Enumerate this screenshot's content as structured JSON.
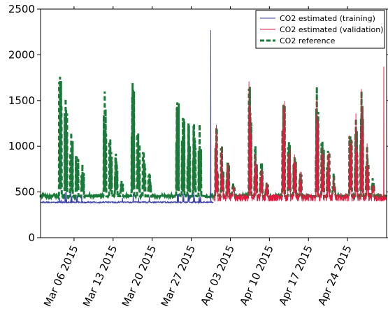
{
  "chart_data": {
    "type": "line",
    "title": "",
    "xlabel": "",
    "ylabel": "",
    "x_axis": {
      "type": "date",
      "range": [
        "2015-02-28",
        "2015-05-01"
      ],
      "tick_dates": [
        "2015-03-06",
        "2015-03-13",
        "2015-03-20",
        "2015-03-27",
        "2015-04-03",
        "2015-04-10",
        "2015-04-17",
        "2015-04-24"
      ],
      "tick_labels": [
        "Mar 06 2015",
        "Mar 13 2015",
        "Mar 20 2015",
        "Mar 27 2015",
        "Apr 03 2015",
        "Apr 10 2015",
        "Apr 17 2015",
        "Apr 24 2015"
      ]
    },
    "y_axis": {
      "range": [
        0,
        2500
      ],
      "ticks": [
        0,
        500,
        1000,
        1500,
        2000,
        2500
      ],
      "tick_labels": [
        "0",
        "500",
        "1000",
        "1500",
        "2000",
        "2500"
      ]
    },
    "grid": false,
    "legend": {
      "position": "top-right",
      "entries": [
        {
          "label": "CO2 estimated (training)",
          "color": "#3a3fa8",
          "style": "solid"
        },
        {
          "label": "CO2 estimated (validation)",
          "color": "#e5173f",
          "style": "solid"
        },
        {
          "label": "CO2 reference",
          "color": "#1a7a3a",
          "style": "dashed"
        }
      ]
    },
    "daily_peaks": {
      "description_dates": "one entry per day starting at x_axis.range[0]",
      "reference": [
        460,
        460,
        470,
        1760,
        1520,
        1150,
        900,
        800,
        470,
        460,
        470,
        1600,
        1080,
        920,
        620,
        470,
        1690,
        1140,
        940,
        700,
        480,
        470,
        470,
        470,
        1480,
        1310,
        1250,
        1250,
        1240,
        470,
        460,
        1200,
        1000,
        820,
        600,
        470,
        470,
        1650,
        1000,
        820,
        600,
        470,
        470,
        1450,
        1050,
        880,
        700,
        470,
        470,
        1650,
        1050,
        950,
        700,
        470,
        470,
        1120,
        1300,
        1600,
        1000,
        650
      ],
      "baseline_reference": 440,
      "training_model_spike": {
        "date": "2015-03-30",
        "value": 2270
      },
      "validation_model_spike": {
        "date": "2015-04-30",
        "value": 1870
      },
      "validation_start": "2015-03-31",
      "training_baseline": 380,
      "validation_baseline": 400
    }
  }
}
